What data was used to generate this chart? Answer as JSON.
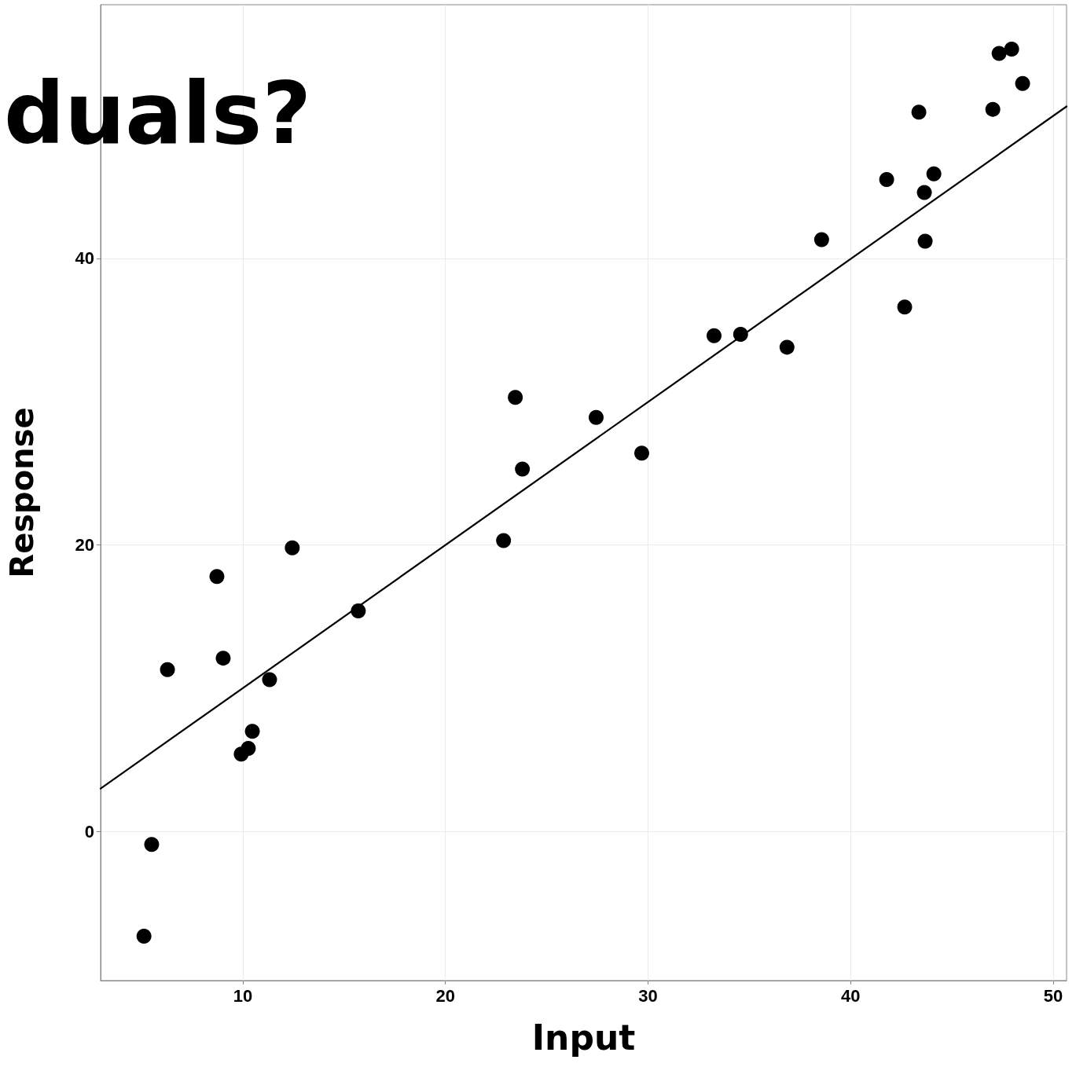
{
  "chart_data": {
    "type": "scatter",
    "title": "duals?",
    "xlabel": "Input",
    "ylabel": "Response",
    "xlim": [
      2.98,
      50.66
    ],
    "ylim": [
      -10.4,
      57.7
    ],
    "xticks": [
      10,
      20,
      30,
      40,
      50
    ],
    "yticks": [
      0,
      20,
      40
    ],
    "grid": true,
    "series": [
      {
        "color": "#000000",
        "marker": "circle",
        "x": [
          5.12,
          5.5,
          6.28,
          8.72,
          9.03,
          9.92,
          10.27,
          10.47,
          11.32,
          12.44,
          15.7,
          22.87,
          23.45,
          23.8,
          27.44,
          29.69,
          33.26,
          34.57,
          36.86,
          38.57,
          41.78,
          42.67,
          43.37,
          43.64,
          43.68,
          44.11,
          47.02,
          47.33,
          47.95,
          48.49
        ],
        "values": [
          -7.3,
          -0.9,
          11.3,
          17.8,
          12.1,
          5.4,
          5.8,
          7.0,
          10.6,
          19.8,
          15.4,
          20.3,
          30.3,
          25.3,
          28.9,
          26.4,
          34.6,
          34.7,
          33.8,
          41.3,
          45.5,
          36.6,
          50.2,
          44.6,
          41.2,
          45.9,
          50.4,
          54.3,
          54.6,
          52.2
        ]
      },
      {
        "type": "line",
        "color": "#000000",
        "marker": "none",
        "line_style": "solid",
        "x": [
          2.98,
          50.66
        ],
        "values": [
          3.0,
          50.6
        ]
      }
    ]
  }
}
